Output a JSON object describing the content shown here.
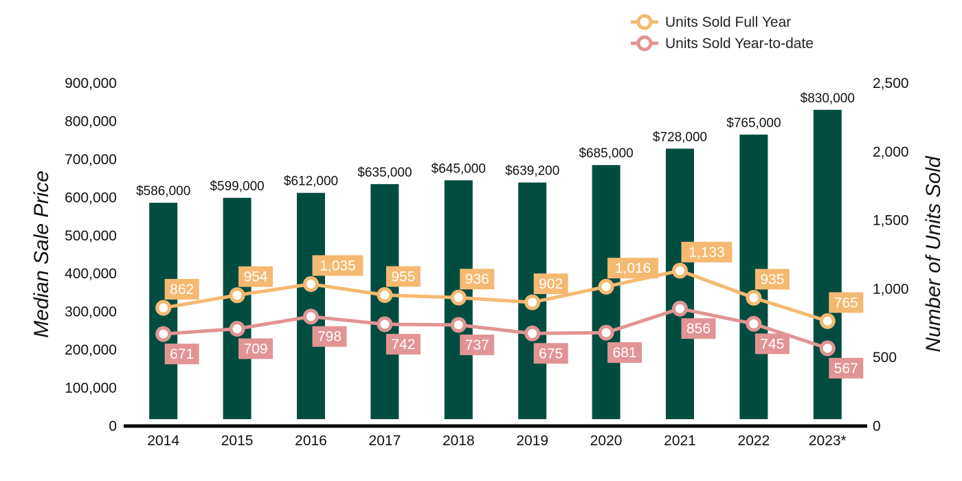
{
  "chart_data": {
    "type": "bar",
    "categories": [
      "2014",
      "2015",
      "2016",
      "2017",
      "2018",
      "2019",
      "2020",
      "2021",
      "2022",
      "2023*"
    ],
    "series": [
      {
        "type": "bar",
        "axis": "left",
        "values": [
          586000,
          599000,
          612000,
          635000,
          645000,
          639200,
          685000,
          728000,
          765000,
          830000
        ],
        "labels": [
          "$586,000",
          "$599,000",
          "$612,000",
          "$635,000",
          "$645,000",
          "$639,200",
          "$685,000",
          "$728,000",
          "$765,000",
          "$830,000"
        ],
        "color": "#004d40"
      },
      {
        "type": "line",
        "axis": "right",
        "name": "Units Sold Full Year",
        "values": [
          862,
          954,
          1035,
          955,
          936,
          902,
          1016,
          1133,
          935,
          765
        ],
        "labels": [
          "862",
          "954",
          "1,035",
          "955",
          "936",
          "902",
          "1,016",
          "1,133",
          "935",
          "765"
        ],
        "color": "#f5b971"
      },
      {
        "type": "line",
        "axis": "right",
        "name": "Units Sold Year-to-date",
        "values": [
          671,
          709,
          798,
          742,
          737,
          675,
          681,
          856,
          745,
          567
        ],
        "labels": [
          "671",
          "709",
          "798",
          "742",
          "737",
          "675",
          "681",
          "856",
          "745",
          "567"
        ],
        "color": "#e29494"
      }
    ],
    "ylabel": "Median Sale Price",
    "y2label": "Number of Units Sold",
    "ylim": [
      0,
      900000
    ],
    "y2lim": [
      0,
      2500
    ],
    "yticks": [
      "0",
      "100,000",
      "200,000",
      "300,000",
      "400,000",
      "500,000",
      "600,000",
      "700,000",
      "800,000",
      "900,000"
    ],
    "y2ticks": [
      "0",
      "500",
      "1,000",
      "1,500",
      "2,000",
      "2,500"
    ],
    "grid": false,
    "legend_position": "top-right"
  }
}
